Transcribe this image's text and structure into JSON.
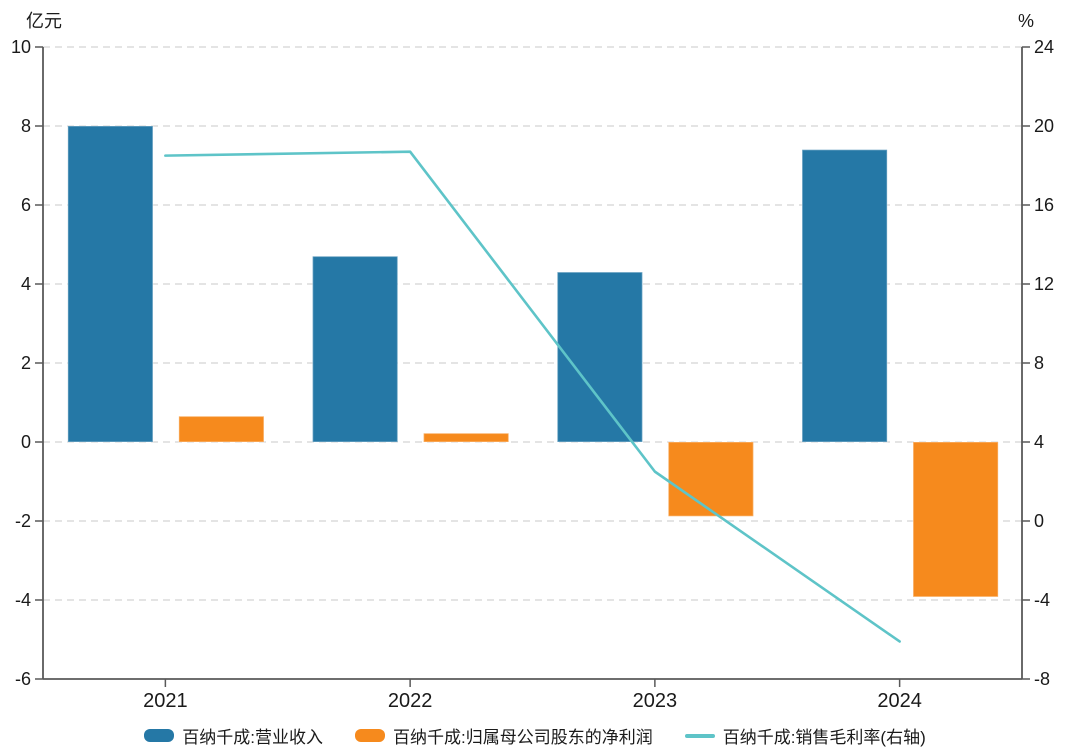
{
  "chart_data": {
    "type": "bar",
    "subtype": "combo-bar-line-dual-axis",
    "title": "",
    "legend_position": "bottom",
    "grid": {
      "show": true,
      "color": "#dcdcdc",
      "dash": "7 5"
    },
    "axis_color": "#595959",
    "text_color": "#1a1a1a",
    "left_axis": {
      "unit": "亿元",
      "min": -6,
      "max": 10,
      "step": 2,
      "ticks": [
        10,
        8,
        6,
        4,
        2,
        0,
        -2,
        -4,
        -6
      ]
    },
    "right_axis": {
      "unit": "%",
      "min": -8,
      "max": 24,
      "step": 4,
      "ticks": [
        24,
        20,
        16,
        12,
        8,
        4,
        0,
        -4,
        -8
      ]
    },
    "categories": [
      "2021",
      "2022",
      "2023",
      "2024"
    ],
    "series": [
      {
        "key": "revenue",
        "name": "百纳千成:营业收入",
        "type": "bar",
        "axis": "left",
        "color": "#2578A6",
        "values": [
          8.0,
          4.7,
          4.3,
          7.4
        ]
      },
      {
        "key": "net-profit",
        "name": "百纳千成:归属母公司股东的净利润",
        "type": "bar",
        "axis": "left",
        "color": "#F68A1D",
        "values": [
          0.65,
          0.22,
          -1.88,
          -3.92
        ]
      },
      {
        "key": "gross-margin",
        "name": "百纳千成:销售毛利率(右轴)",
        "type": "line",
        "axis": "right",
        "color": "#5EC4C8",
        "values": [
          18.5,
          18.7,
          2.5,
          -6.1
        ]
      }
    ]
  }
}
